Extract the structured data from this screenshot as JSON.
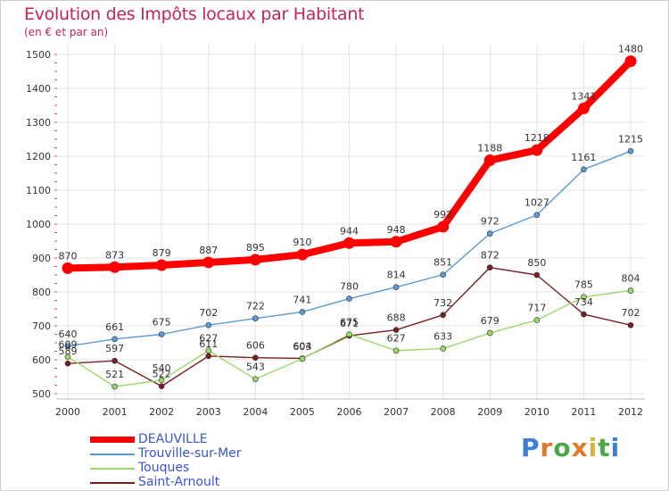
{
  "title": "Evolution des Impôts locaux par Habitant",
  "subtitle": "(en € et par an)",
  "logo": "Proxiti",
  "chart_data": {
    "type": "line",
    "x": [
      "2000",
      "2001",
      "2002",
      "2003",
      "2004",
      "2005",
      "2006",
      "2007",
      "2008",
      "2009",
      "2010",
      "2011",
      "2012"
    ],
    "ylim": [
      500,
      1500
    ],
    "yticks": [
      500,
      600,
      700,
      800,
      900,
      1000,
      1100,
      1200,
      1300,
      1400,
      1500
    ],
    "grid": true,
    "legend_position": "bottom-left",
    "series": [
      {
        "name": "DEAUVILLE",
        "color": "#ff0000",
        "values": [
          870,
          873,
          879,
          887,
          895,
          910,
          944,
          948,
          992,
          1188,
          1218,
          1341,
          1480
        ]
      },
      {
        "name": "Trouville-sur-Mer",
        "color": "#5b9bd5",
        "values": [
          640,
          661,
          675,
          702,
          722,
          741,
          780,
          814,
          851,
          972,
          1027,
          1161,
          1215
        ]
      },
      {
        "name": "Touques",
        "color": "#99d96a",
        "values": [
          609,
          521,
          540,
          627,
          543,
          603,
          675,
          627,
          633,
          679,
          717,
          785,
          804
        ]
      },
      {
        "name": "Saint-Arnoult",
        "color": "#7a1f1f",
        "values": [
          589,
          597,
          522,
          611,
          606,
          604,
          671,
          688,
          732,
          872,
          850,
          734,
          702
        ]
      }
    ]
  }
}
